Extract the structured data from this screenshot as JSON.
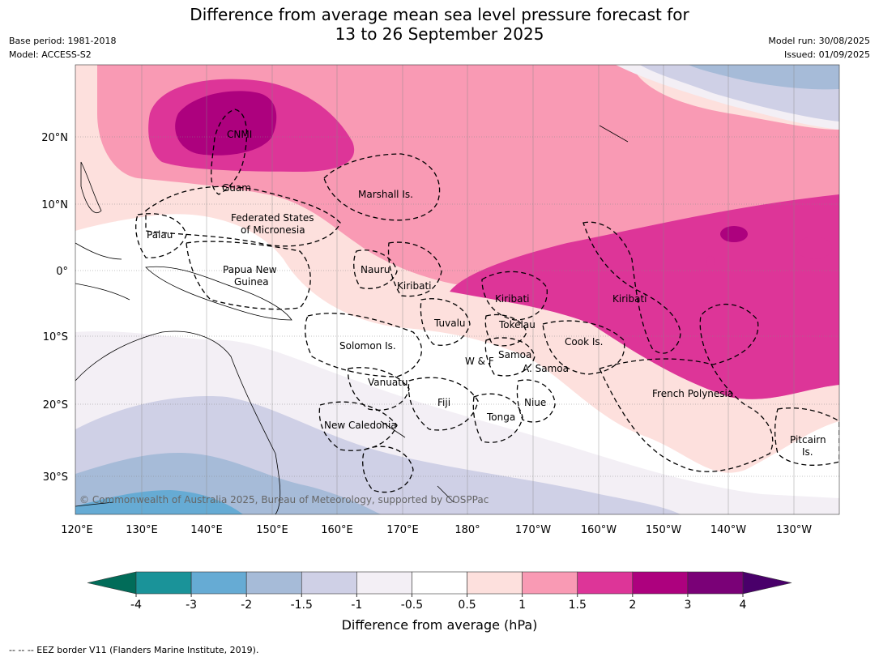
{
  "title_line1": "Difference from average mean sea level pressure forecast for",
  "title_line2": "13 to 26 September 2025",
  "meta": {
    "base_period": "Base period: 1981-2018",
    "model": "Model: ACCESS-S2",
    "model_run": "Model run: 30/08/2025",
    "issued": "Issued: 01/09/2025"
  },
  "map": {
    "lon_ticks": [
      "120°E",
      "130°E",
      "140°E",
      "150°E",
      "160°E",
      "170°E",
      "180°",
      "170°W",
      "160°W",
      "150°W",
      "140°W",
      "130°W"
    ],
    "lat_ticks": [
      "20°N",
      "10°N",
      "0°",
      "10°S",
      "20°S",
      "30°S"
    ],
    "copyright": "© Commonwealth of Australia 2025, Bureau of Meteorology, supported by COSPPac",
    "labels": {
      "cnmi": "CNMI",
      "guam": "Guam",
      "marshall": "Marshall Is.",
      "fsm1": "Federated States",
      "fsm2": "of Micronesia",
      "palau": "Palau",
      "png1": "Papua New",
      "png2": "Guinea",
      "nauru": "Nauru",
      "kiribati_w": "Kiribati",
      "kiribati_c": "Kiribati",
      "kiribati_e": "Kiribati",
      "tuvalu": "Tuvalu",
      "tokelau": "Tokelau",
      "cook": "Cook Is.",
      "solomon": "Solomon Is.",
      "wf": "W & F",
      "samoa": "Samoa",
      "asamoa": "A. Samoa",
      "vanuatu": "Vanuatu",
      "fiji": "Fiji",
      "niue": "Niue",
      "tonga": "Tonga",
      "frpoly": "French Polynesia",
      "newcal": "New Caledonia",
      "pitcairn1": "Pitcairn",
      "pitcairn2": "Is."
    }
  },
  "colorbar": {
    "ticks": [
      "-4",
      "-3",
      "-2",
      "-1.5",
      "-1",
      "-0.5",
      "0.5",
      "1",
      "1.5",
      "2",
      "3",
      "4"
    ],
    "colors": [
      "#1a9399",
      "#66abd4",
      "#a6bbd8",
      "#cfd0e6",
      "#f3eff5",
      "#ffffff",
      "#fde0dd",
      "#f99ab4",
      "#dd3598",
      "#ad017e",
      "#7a0177"
    ],
    "low_extend_color": "#016c59",
    "high_extend_color": "#49006a",
    "label": "Difference from average (hPa)"
  },
  "footnote": "--  --  -- EEZ border V11 (Flanders Marine Institute, 2019)."
}
